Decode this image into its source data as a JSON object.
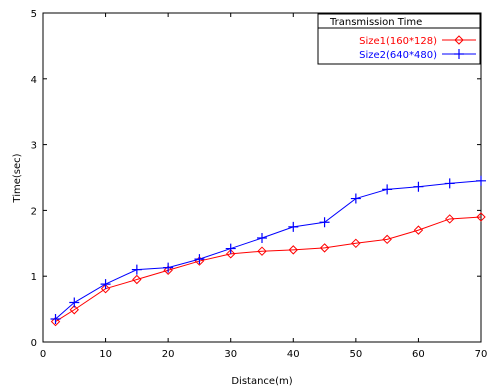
{
  "chart_data": {
    "type": "line",
    "title": "",
    "xlabel": "Distance(m)",
    "ylabel": "Time(sec)",
    "xlim": [
      0,
      70
    ],
    "ylim": [
      0,
      5
    ],
    "x_ticks": [
      "0",
      "10",
      "20",
      "30",
      "40",
      "50",
      "60",
      "70"
    ],
    "y_ticks": [
      "0",
      "1",
      "2",
      "3",
      "4",
      "5"
    ],
    "grid": false,
    "legend": {
      "title": "Transmission Time",
      "placement": "top-right"
    },
    "series": [
      {
        "name": "Size1(160*128)",
        "color": "#ff0000",
        "marker": "diamond",
        "x": [
          2,
          5,
          10,
          15,
          20,
          25,
          30,
          35,
          40,
          45,
          50,
          55,
          60,
          65,
          70
        ],
        "y": [
          0.31,
          0.49,
          0.81,
          0.95,
          1.09,
          1.23,
          1.34,
          1.38,
          1.4,
          1.43,
          1.5,
          1.56,
          1.7,
          1.87,
          1.9
        ]
      },
      {
        "name": "Size2(640*480)",
        "color": "#0000ff",
        "marker": "plus",
        "x": [
          2,
          5,
          10,
          15,
          20,
          25,
          30,
          35,
          40,
          45,
          50,
          55,
          60,
          65,
          70
        ],
        "y": [
          0.35,
          0.6,
          0.88,
          1.1,
          1.13,
          1.26,
          1.42,
          1.58,
          1.75,
          1.82,
          2.18,
          2.32,
          2.36,
          2.41,
          2.45
        ]
      }
    ]
  }
}
